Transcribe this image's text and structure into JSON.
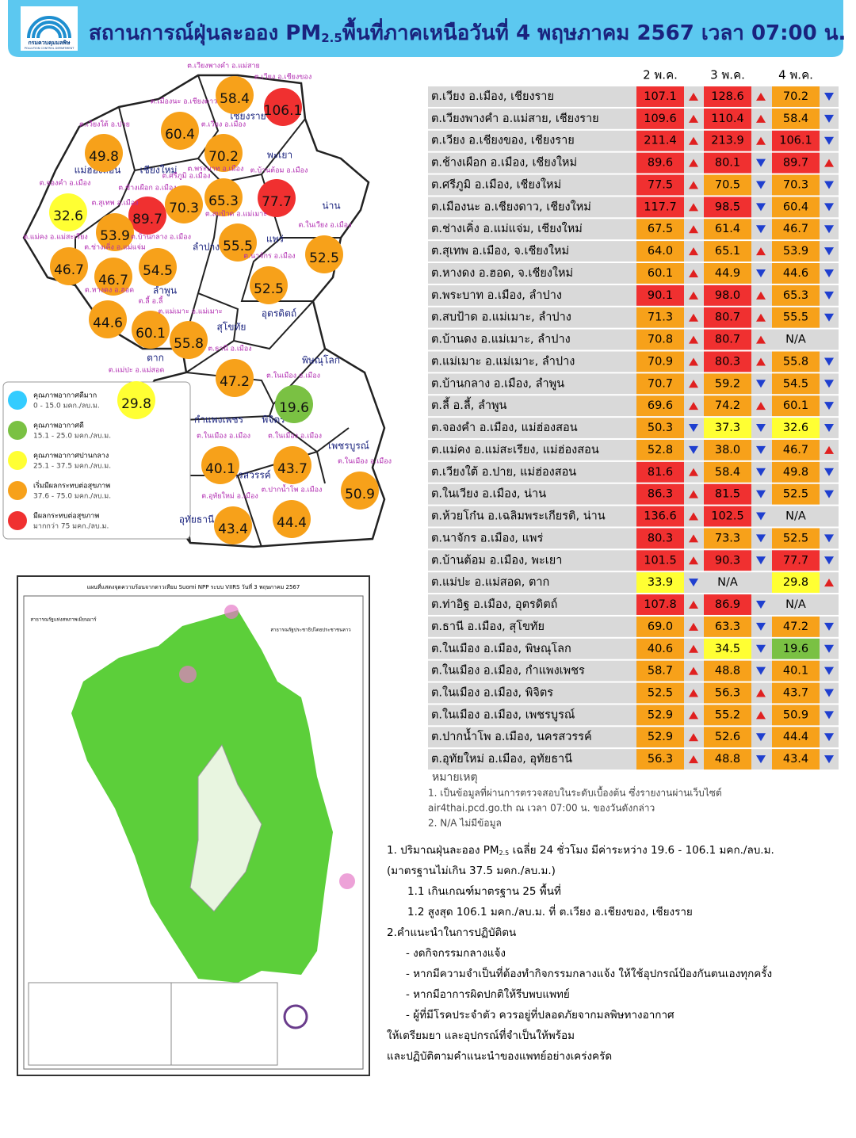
{
  "header": {
    "logo_name": "กรมควบคุมมลพิษ",
    "logo_sub": "POLLUTION CONTROL DEPARTMENT",
    "title_main": "สถานการณ์ฝุ่นละออง PM",
    "title_sub": "2.5",
    "title_rest": "พื้นที่ภาคเหนือวันที่ 4 พฤษภาคม 2567 เวลา 07:00 น."
  },
  "legend": [
    {
      "label": "คุณภาพอากาศดีมาก",
      "range": "0 - 15.0 มคก./ลบ.ม.",
      "color": "#33ccff",
      "max": 15
    },
    {
      "label": "คุณภาพอากาศดี",
      "range": "15.1 - 25.0 มคก./ลบ.ม.",
      "color": "#7ac143",
      "max": 25
    },
    {
      "label": "คุณภาพอากาศปานกลาง",
      "range": "25.1 - 37.5 มคก./ลบ.ม.",
      "color": "#ffff33",
      "max": 37.5
    },
    {
      "label": "เริ่มมีผลกระทบต่อสุขภาพ",
      "range": "37.6 - 75.0 มคก./ลบ.ม.",
      "color": "#f7a11a",
      "max": 75
    },
    {
      "label": "มีผลกระทบต่อสุขภาพ",
      "range": "มากกว่า 75 มคก./ลบ.ม.",
      "color": "#f03030",
      "max": null
    }
  ],
  "map": {
    "provinces": [
      "แม่ฮ่องสอน",
      "เชียงใหม่",
      "เชียงราย",
      "พะเยา",
      "น่าน",
      "ลำปาง",
      "แพร่",
      "ลำพูน",
      "อุตรดิตถ์",
      "สุโขทัย",
      "ตาก",
      "พิษณุโลก",
      "กำแพงเพชร",
      "พิจิตร",
      "เพชรบูรณ์",
      "นครสวรรค์",
      "อุทัยธานี"
    ],
    "stations": [
      {
        "label": "ต.เวียงพางคำ อ.แม่สาย",
        "value": "58.4"
      },
      {
        "label": "ต.เวียง อ.เชียงของ",
        "value": "106.1"
      },
      {
        "label": "ต.เมืองนะ อ.เชียงดาว",
        "value": "60.4"
      },
      {
        "label": "ต.เวียงใต้ อ.ปาย",
        "value": "49.8"
      },
      {
        "label": "ต.เวียง อ.เมือง",
        "value": "70.2"
      },
      {
        "label": "ต.พระบาท อ.เมือง",
        "value": "65.3"
      },
      {
        "label": "ต.บ้านต้อม อ.เมือง",
        "value": "77.7"
      },
      {
        "label": "ต.จองคำ อ.เมือง",
        "value": "32.6"
      },
      {
        "label": "ต.ช้างเผือก อ.เมือง",
        "value": "89.7"
      },
      {
        "label": "ต.ศรีภูมิ อ.เมือง",
        "value": "70.3"
      },
      {
        "label": "ต.สุเทพ อ.เมือง",
        "value": "53.9"
      },
      {
        "label": "ต.สบป้าด อ.แม่เมาะ",
        "value": "55.5"
      },
      {
        "label": "ต.ในเวียง อ.เมือง",
        "value": "52.5"
      },
      {
        "label": "ต.แม่คง อ.แม่สะเรียง",
        "value": "46.7"
      },
      {
        "label": "ต.ช่างเคิ่ง อ.แม่แจ่ม",
        "value": "46.7"
      },
      {
        "label": "ต.บ้านกลาง อ.เมือง",
        "value": "54.5"
      },
      {
        "label": "ต.นาจักร อ.เมือง",
        "value": "52.5"
      },
      {
        "label": "ต.หางดง อ.ฮอด",
        "value": "44.6"
      },
      {
        "label": "ต.ลี้ อ.ลี้",
        "value": "60.1"
      },
      {
        "label": "ต.แม่เมาะ อ.แม่เมาะ",
        "value": "55.8"
      },
      {
        "label": "ต.ธานี อ.เมือง",
        "value": "47.2"
      },
      {
        "label": "ต.แม่ปะ อ.แม่สอด",
        "value": "29.8"
      },
      {
        "label": "ต.ในเมือง อ.เมือง",
        "value": "19.6"
      },
      {
        "label": "ต.ในเมือง อ.เมือง",
        "value": "40.1"
      },
      {
        "label": "ต.ในเมือง อ.เมือง",
        "value": "43.7"
      },
      {
        "label": "ต.ในเมือง อ.เมือง",
        "value": "50.9"
      },
      {
        "label": "ต.อุทัยใหม่ อ.เมือง",
        "value": "43.4"
      },
      {
        "label": "ต.ปากน้ำโพ อ.เมือง",
        "value": "44.4"
      }
    ]
  },
  "fire_map": {
    "title": "แผนที่แสดงจุดความร้อนจากดาวเทียม Suomi NPP ระบบ VIIRS  วันที่ 3 พฤษภาคม 2567",
    "labels": [
      "สาธารณรัฐแห่งสหภาพเมียนมาร์",
      "สาธารณรัฐประชาธิปไตยประชาชนลาว"
    ]
  },
  "table": {
    "columns": [
      "2 พ.ค.",
      "3 พ.ค.",
      "4 พ.ค."
    ],
    "rows": [
      {
        "name": "ต.เวียง อ.เมือง, เชียงราย",
        "values": [
          "107.1",
          "128.6",
          "70.2"
        ],
        "trends": [
          "up",
          "up",
          "down"
        ]
      },
      {
        "name": "ต.เวียงพางคำ อ.แม่สาย, เชียงราย",
        "values": [
          "109.6",
          "110.4",
          "58.4"
        ],
        "trends": [
          "up",
          "up",
          "down"
        ]
      },
      {
        "name": "ต.เวียง อ.เชียงของ, เชียงราย",
        "values": [
          "211.4",
          "213.9",
          "106.1"
        ],
        "trends": [
          "up",
          "up",
          "down"
        ]
      },
      {
        "name": "ต.ช้างเผือก อ.เมือง, เชียงใหม่",
        "values": [
          "89.6",
          "80.1",
          "89.7"
        ],
        "trends": [
          "up",
          "down",
          "up"
        ]
      },
      {
        "name": "ต.ศรีภูมิ อ.เมือง, เชียงใหม่",
        "values": [
          "77.5",
          "70.5",
          "70.3"
        ],
        "trends": [
          "up",
          "down",
          "down"
        ]
      },
      {
        "name": "ต.เมืองนะ อ.เชียงดาว, เชียงใหม่",
        "values": [
          "117.7",
          "98.5",
          "60.4"
        ],
        "trends": [
          "up",
          "down",
          "down"
        ]
      },
      {
        "name": "ต.ช่างเคิ่ง อ.แม่แจ่ม, เชียงใหม่",
        "values": [
          "67.5",
          "61.4",
          "46.7"
        ],
        "trends": [
          "up",
          "down",
          "down"
        ]
      },
      {
        "name": "ต.สุเทพ  อ.เมือง, จ.เชียงใหม่",
        "values": [
          "64.0",
          "65.1",
          "53.9"
        ],
        "trends": [
          "up",
          "up",
          "down"
        ]
      },
      {
        "name": "ต.หางดง อ.ฮอด, จ.เชียงใหม่",
        "values": [
          "60.1",
          "44.9",
          "44.6"
        ],
        "trends": [
          "up",
          "down",
          "down"
        ]
      },
      {
        "name": "ต.พระบาท อ.เมือง, ลำปาง",
        "values": [
          "90.1",
          "98.0",
          "65.3"
        ],
        "trends": [
          "up",
          "up",
          "down"
        ]
      },
      {
        "name": "ต.สบป้าด อ.แม่เมาะ, ลำปาง",
        "values": [
          "71.3",
          "80.7",
          "55.5"
        ],
        "trends": [
          "up",
          "up",
          "down"
        ]
      },
      {
        "name": "ต.บ้านดง อ.แม่เมาะ, ลำปาง",
        "values": [
          "70.8",
          "80.7",
          "N/A"
        ],
        "trends": [
          "up",
          "up",
          null
        ]
      },
      {
        "name": "ต.แม่เมาะ อ.แม่เมาะ, ลำปาง",
        "values": [
          "70.9",
          "80.3",
          "55.8"
        ],
        "trends": [
          "up",
          "up",
          "down"
        ]
      },
      {
        "name": "ต.บ้านกลาง อ.เมือง, ลำพูน",
        "values": [
          "70.7",
          "59.2",
          "54.5"
        ],
        "trends": [
          "up",
          "down",
          "down"
        ]
      },
      {
        "name": "ต.ลี้ อ.ลี้, ลำพูน",
        "values": [
          "69.6",
          "74.2",
          "60.1"
        ],
        "trends": [
          "up",
          "up",
          "down"
        ]
      },
      {
        "name": "ต.จองคำ อ.เมือง, แม่ฮ่องสอน",
        "values": [
          "50.3",
          "37.3",
          "32.6"
        ],
        "trends": [
          "down",
          "down",
          "down"
        ]
      },
      {
        "name": "ต.แม่คง อ.แม่สะเรียง, แม่ฮ่องสอน",
        "values": [
          "52.8",
          "38.0",
          "46.7"
        ],
        "trends": [
          "down",
          "down",
          "up"
        ]
      },
      {
        "name": "ต.เวียงใต้ อ.ปาย, แม่ฮ่องสอน",
        "values": [
          "81.6",
          "58.4",
          "49.8"
        ],
        "trends": [
          "up",
          "down",
          "down"
        ]
      },
      {
        "name": "ต.ในเวียง อ.เมือง, น่าน",
        "values": [
          "86.3",
          "81.5",
          "52.5"
        ],
        "trends": [
          "up",
          "down",
          "down"
        ]
      },
      {
        "name": "ต.ห้วยโก๋น อ.เฉลิมพระเกียรติ, น่าน",
        "values": [
          "136.6",
          "102.5",
          "N/A"
        ],
        "trends": [
          "up",
          "down",
          null
        ]
      },
      {
        "name": "ต.นาจักร อ.เมือง, แพร่",
        "values": [
          "80.3",
          "73.3",
          "52.5"
        ],
        "trends": [
          "up",
          "down",
          "down"
        ]
      },
      {
        "name": "ต.บ้านต้อม อ.เมือง, พะเยา",
        "values": [
          "101.5",
          "90.3",
          "77.7"
        ],
        "trends": [
          "up",
          "down",
          "down"
        ]
      },
      {
        "name": "ต.แม่ปะ อ.แม่สอด, ตาก",
        "values": [
          "33.9",
          "N/A",
          "29.8"
        ],
        "trends": [
          "down",
          null,
          "up"
        ]
      },
      {
        "name": "ต.ท่าอิฐ อ.เมือง, อุตรดิตถ์",
        "values": [
          "107.8",
          "86.9",
          "N/A"
        ],
        "trends": [
          "up",
          "down",
          null
        ]
      },
      {
        "name": "ต.ธานี อ.เมือง, สุโขทัย",
        "values": [
          "69.0",
          "63.3",
          "47.2"
        ],
        "trends": [
          "up",
          "down",
          "down"
        ]
      },
      {
        "name": "ต.ในเมือง อ.เมือง, พิษณุโลก",
        "values": [
          "40.6",
          "34.5",
          "19.6"
        ],
        "trends": [
          "up",
          "down",
          "down"
        ]
      },
      {
        "name": "ต.ในเมือง อ.เมือง, กำแพงเพชร",
        "values": [
          "58.7",
          "48.8",
          "40.1"
        ],
        "trends": [
          "up",
          "down",
          "down"
        ]
      },
      {
        "name": "ต.ในเมือง อ.เมือง, พิจิตร",
        "values": [
          "52.5",
          "56.3",
          "43.7"
        ],
        "trends": [
          "up",
          "up",
          "down"
        ]
      },
      {
        "name": "ต.ในเมือง อ.เมือง, เพชรบูรณ์",
        "values": [
          "52.9",
          "55.2",
          "50.9"
        ],
        "trends": [
          "up",
          "up",
          "down"
        ]
      },
      {
        "name": "ต.ปากน้ำโพ อ.เมือง, นครสวรรค์",
        "values": [
          "52.9",
          "52.6",
          "44.4"
        ],
        "trends": [
          "up",
          "down",
          "down"
        ]
      },
      {
        "name": "ต.อุทัยใหม่ อ.เมือง, อุทัยธานี",
        "values": [
          "56.3",
          "48.8",
          "43.4"
        ],
        "trends": [
          "up",
          "down",
          "down"
        ]
      }
    ]
  },
  "notes": {
    "title": "หมายเหตุ",
    "lines": [
      "1. เป็นข้อมูลที่ผ่านการตรวจสอบในระดับเบื้องต้น  ซึ่งรายงานผ่านเว็บไซต์",
      "air4thai.pcd.go.th  ณ  เวลา 07:00  น.  ของวันดังกล่าว",
      "2.  N/A  ไม่มีข้อมูล"
    ]
  },
  "summary": {
    "line1_main": "1. ปริมาณฝุ่นละออง PM",
    "line1_sub": "2.5",
    "line1_rest": " เฉลี่ย 24 ชั่วโมง มีค่าระหว่าง 19.6 - 106.1 มคก./ลบ.ม.",
    "lines": [
      "(มาตรฐานไม่เกิน 37.5 มคก./ลบ.ม.)",
      "1.1 เกินเกณฑ์มาตรฐาน 25 พื้นที่",
      "1.2 สูงสุด 106.1 มคก./ลบ.ม. ที่ ต.เวียง อ.เชียงของ, เชียงราย",
      "2.คำแนะนำในการปฏิบัติตน",
      "-  งดกิจกรรมกลางแจ้ง",
      "-  หากมีความจำเป็นที่ต้องทำกิจกรรมกลางแจ้ง ให้ใช้อุปกรณ์ป้องกันตนเองทุกครั้ง",
      "-  หากมีอาการผิดปกติให้รีบพบแพทย์",
      "-  ผู้ที่มีโรคประจำตัว ควรอยู่ที่ปลอดภัยจากมลพิษทางอากาศ",
      "ให้เตรียมยา และอุปกรณ์ที่จำเป็นให้พร้อม",
      "และปฏิบัติตามคำแนะนำของแพทย์อย่างเคร่งครัด"
    ]
  }
}
